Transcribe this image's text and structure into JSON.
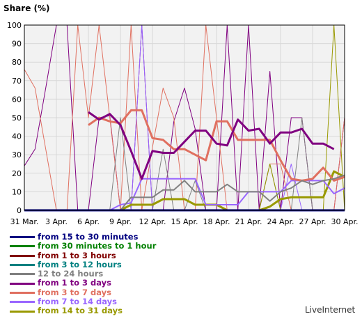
{
  "chart_data": {
    "type": "line",
    "ylabel": "Share (%)",
    "ylim": [
      0,
      100
    ],
    "yticks": [
      0,
      10,
      20,
      30,
      40,
      50,
      60,
      70,
      80,
      90,
      100
    ],
    "xlim": [
      0,
      30
    ],
    "xticks": [
      {
        "x": 0,
        "label": "31 Mar."
      },
      {
        "x": 3,
        "label": "3 Apr."
      },
      {
        "x": 6,
        "label": "6 Apr."
      },
      {
        "x": 9,
        "label": "9 Apr."
      },
      {
        "x": 12,
        "label": "12 Apr."
      },
      {
        "x": 15,
        "label": "15 Apr."
      },
      {
        "x": 18,
        "label": "18 Apr."
      },
      {
        "x": 21,
        "label": "21 Apr."
      },
      {
        "x": 24,
        "label": "24 Apr."
      },
      {
        "x": 27,
        "label": "27 Apr."
      },
      {
        "x": 30,
        "label": "30 Apr."
      }
    ],
    "grid": true,
    "legend_position": "bottom-left",
    "series": [
      {
        "name": "from 15 to 30 minutes",
        "color": "#000080",
        "width": 3,
        "values": [
          0,
          0,
          0,
          0,
          0,
          0,
          0,
          0,
          0,
          0,
          0,
          0,
          0,
          0,
          0,
          0,
          0,
          0,
          0,
          0,
          0,
          0,
          0,
          0,
          0,
          0,
          0,
          0,
          0,
          0,
          0
        ]
      },
      {
        "name": "from 30 minutes to 1 hour",
        "color": "#008000",
        "width": 1,
        "values": [
          0,
          0,
          0,
          0,
          0,
          0,
          0,
          0,
          0,
          0,
          0,
          0,
          0,
          0,
          0,
          0,
          0,
          0,
          0,
          0,
          0,
          0,
          0,
          0,
          0,
          0,
          0,
          0,
          0,
          0,
          0
        ]
      },
      {
        "name": "from 1 to 3 hours",
        "color": "#800000",
        "width": 1,
        "values": [
          0,
          0,
          0,
          0,
          0,
          0,
          0,
          0,
          0,
          0,
          0,
          0,
          0,
          0,
          0,
          0,
          0,
          0,
          0,
          0,
          0,
          0,
          0,
          0,
          0,
          0,
          0,
          0,
          0,
          0,
          0
        ]
      },
      {
        "name": "from 3 to 12 hours",
        "color": "#008080",
        "width": 1,
        "values": [
          0,
          0,
          0,
          0,
          0,
          0,
          0,
          0,
          0,
          0,
          0,
          0,
          0,
          0,
          0,
          0,
          0,
          0,
          0,
          0,
          0,
          0,
          0,
          0,
          0,
          0,
          0,
          0,
          0,
          0,
          0
        ]
      },
      {
        "name": "12 to 24 hours",
        "color": "#808080",
        "width": 2,
        "values": [
          null,
          null,
          null,
          null,
          null,
          null,
          0,
          0,
          0,
          0,
          7,
          7,
          7,
          11,
          11,
          16,
          10,
          10,
          10,
          14,
          10,
          10,
          10,
          5,
          10,
          12,
          16,
          14,
          16,
          17,
          19
        ]
      },
      {
        "name": "from 1 to 3 days",
        "color": "#800080",
        "width": 3,
        "values": [
          null,
          null,
          null,
          null,
          null,
          null,
          53,
          49,
          52,
          46,
          32,
          17,
          32,
          31,
          31,
          37,
          43,
          43,
          36,
          35,
          49,
          43,
          44,
          36,
          42,
          42,
          44,
          36,
          36,
          33,
          null
        ]
      },
      {
        "name": "from 3 to 7 days",
        "color": "#e07060",
        "width": 3,
        "values": [
          null,
          null,
          null,
          null,
          null,
          null,
          46,
          50,
          48,
          47,
          54,
          54,
          39,
          38,
          33,
          33,
          30,
          27,
          48,
          48,
          38,
          38,
          38,
          38,
          27,
          17,
          16,
          17,
          23,
          16,
          18
        ]
      },
      {
        "name": "from 7 to 14 days",
        "color": "#9966ff",
        "width": 2,
        "values": [
          null,
          null,
          null,
          null,
          null,
          null,
          null,
          0,
          0,
          3,
          4,
          17,
          17,
          17,
          17,
          17,
          17,
          3,
          3,
          3,
          3,
          10,
          10,
          10,
          10,
          16,
          16,
          16,
          16,
          9,
          12
        ]
      },
      {
        "name": "from 14 to 31 days",
        "color": "#999900",
        "width": 3,
        "values": [
          null,
          null,
          null,
          null,
          null,
          null,
          null,
          null,
          null,
          0,
          3,
          3,
          3,
          6,
          6,
          6,
          3,
          3,
          3,
          0,
          0,
          0,
          0,
          2,
          6,
          7,
          7,
          7,
          7,
          21,
          18
        ]
      }
    ],
    "spiky_series": [
      {
        "name": "from 1 to 3 days (daily)",
        "color": "#800080",
        "width": 1,
        "values": [
          24,
          33,
          66,
          100,
          100,
          0,
          0,
          50,
          51,
          0,
          0,
          100,
          0,
          0,
          48,
          66,
          44,
          0,
          0,
          100,
          0,
          100,
          0,
          75,
          0,
          50,
          50,
          0,
          0,
          0,
          50
        ]
      },
      {
        "name": "from 3 to 7 days (daily)",
        "color": "#e07060",
        "width": 1,
        "values": [
          76,
          66,
          33,
          0,
          0,
          100,
          50,
          100,
          50,
          0,
          100,
          0,
          34,
          66,
          50,
          0,
          0,
          100,
          50,
          0,
          0,
          0,
          0,
          25,
          25,
          0,
          0,
          0,
          0,
          0,
          50
        ]
      },
      {
        "name": "12 to 24 hours (daily)",
        "color": "#808080",
        "width": 1,
        "values": [
          null,
          null,
          null,
          null,
          null,
          null,
          0,
          0,
          0,
          50,
          0,
          0,
          0,
          33,
          0,
          0,
          16,
          0,
          0,
          0,
          0,
          0,
          0,
          25,
          0,
          0,
          50,
          0,
          0,
          0,
          0
        ]
      },
      {
        "name": "from 7 to 14 days (daily)",
        "color": "#9966ff",
        "width": 1,
        "values": [
          null,
          null,
          null,
          null,
          null,
          null,
          null,
          0,
          0,
          0,
          0,
          100,
          0,
          0,
          0,
          0,
          0,
          0,
          0,
          0,
          0,
          0,
          0,
          0,
          0,
          25,
          0,
          0,
          0,
          0,
          0
        ]
      },
      {
        "name": "from 14 to 31 days (daily)",
        "color": "#999900",
        "width": 1,
        "values": [
          null,
          null,
          null,
          null,
          null,
          null,
          null,
          null,
          null,
          0,
          0,
          0,
          0,
          0,
          0,
          0,
          0,
          0,
          0,
          0,
          0,
          0,
          0,
          25,
          0,
          0,
          0,
          0,
          0,
          100,
          0
        ]
      }
    ]
  },
  "brand": "LiveInternet"
}
